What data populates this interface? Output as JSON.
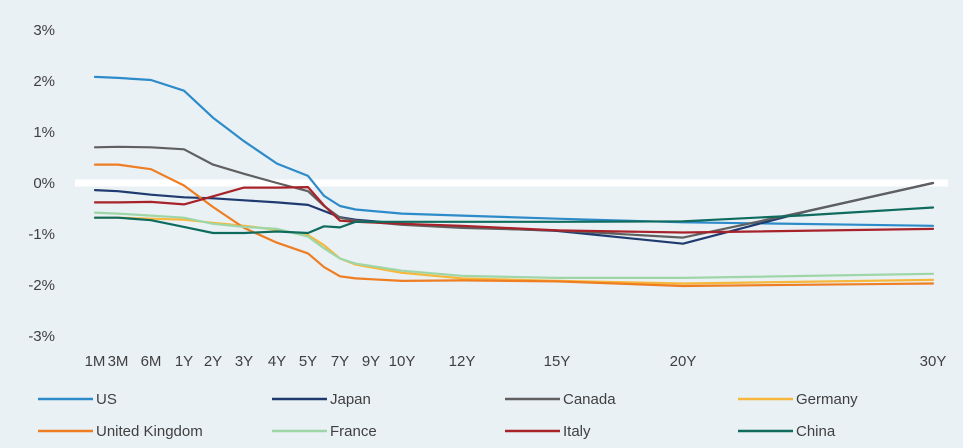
{
  "chart_data": {
    "type": "line",
    "title": "",
    "xlabel": "",
    "ylabel": "",
    "ylim": [
      -3,
      3
    ],
    "yticks": [
      3,
      2,
      1,
      0,
      -1,
      -2,
      -3
    ],
    "ytick_labels": [
      "3%",
      "2%",
      "1%",
      "0%",
      "-1%",
      "-2%",
      "-3%"
    ],
    "x_categories": [
      "1M",
      "3M",
      "6M",
      "1Y",
      "2Y",
      "3Y",
      "4Y",
      "5Y",
      "7Y",
      "9Y",
      "10Y",
      "12Y",
      "15Y",
      "20Y",
      "30Y"
    ],
    "x_positions_years": [
      0.083,
      0.25,
      0.5,
      1,
      2,
      3,
      4,
      5,
      7,
      9,
      10,
      12,
      15,
      20,
      30
    ],
    "zero_line": true,
    "grid": false,
    "legend_position": "bottom",
    "series": [
      {
        "name": "US",
        "color": "#2e8bc9",
        "points": [
          [
            0.083,
            2.08
          ],
          [
            0.25,
            2.06
          ],
          [
            0.5,
            2.02
          ],
          [
            1,
            1.81
          ],
          [
            2,
            1.28
          ],
          [
            3,
            0.82
          ],
          [
            4,
            0.38
          ],
          [
            5,
            0.14
          ],
          [
            6,
            -0.25
          ],
          [
            7,
            -0.45
          ],
          [
            8,
            -0.52
          ],
          [
            10,
            -0.6
          ],
          [
            12,
            -0.64
          ],
          [
            15,
            -0.7
          ],
          [
            20,
            -0.77
          ],
          [
            30,
            -0.84
          ]
        ]
      },
      {
        "name": "Japan",
        "color": "#1f3a6e",
        "points": [
          [
            0.083,
            -0.14
          ],
          [
            0.25,
            -0.16
          ],
          [
            0.5,
            -0.23
          ],
          [
            1,
            -0.28
          ],
          [
            2,
            -0.3
          ],
          [
            3,
            -0.34
          ],
          [
            4,
            -0.38
          ],
          [
            5,
            -0.43
          ],
          [
            6,
            -0.55
          ],
          [
            7,
            -0.67
          ],
          [
            8,
            -0.72
          ],
          [
            10,
            -0.8
          ],
          [
            12,
            -0.86
          ],
          [
            15,
            -0.94
          ],
          [
            20,
            -1.19
          ],
          [
            25,
            -0.55
          ],
          [
            30,
            0.0
          ]
        ]
      },
      {
        "name": "Canada",
        "color": "#606060",
        "points": [
          [
            0.083,
            0.7
          ],
          [
            0.25,
            0.71
          ],
          [
            0.5,
            0.7
          ],
          [
            1,
            0.66
          ],
          [
            2,
            0.36
          ],
          [
            3,
            0.18
          ],
          [
            4,
            0.0
          ],
          [
            5,
            -0.16
          ],
          [
            6,
            -0.45
          ],
          [
            7,
            -0.68
          ],
          [
            8,
            -0.74
          ],
          [
            10,
            -0.82
          ],
          [
            12,
            -0.88
          ],
          [
            15,
            -0.93
          ],
          [
            20,
            -1.07
          ],
          [
            25,
            -0.55
          ],
          [
            30,
            0.0
          ]
        ]
      },
      {
        "name": "Germany",
        "color": "#f6b83c",
        "points": [
          [
            0.083,
            -0.68
          ],
          [
            0.25,
            -0.68
          ],
          [
            0.5,
            -0.7
          ],
          [
            1,
            -0.72
          ],
          [
            2,
            -0.78
          ],
          [
            3,
            -0.84
          ],
          [
            4,
            -0.92
          ],
          [
            5,
            -1.02
          ],
          [
            6,
            -1.22
          ],
          [
            7,
            -1.48
          ],
          [
            8,
            -1.6
          ],
          [
            10,
            -1.76
          ],
          [
            12,
            -1.87
          ],
          [
            15,
            -1.92
          ],
          [
            20,
            -1.97
          ],
          [
            30,
            -1.9
          ]
        ]
      },
      {
        "name": "United Kingdom",
        "color": "#ef7d22",
        "points": [
          [
            0.083,
            0.36
          ],
          [
            0.25,
            0.36
          ],
          [
            0.5,
            0.27
          ],
          [
            1,
            -0.05
          ],
          [
            2,
            -0.47
          ],
          [
            3,
            -0.88
          ],
          [
            4,
            -1.17
          ],
          [
            5,
            -1.38
          ],
          [
            6,
            -1.65
          ],
          [
            7,
            -1.83
          ],
          [
            8,
            -1.87
          ],
          [
            10,
            -1.92
          ],
          [
            12,
            -1.91
          ],
          [
            15,
            -1.93
          ],
          [
            20,
            -2.02
          ],
          [
            30,
            -1.97
          ]
        ]
      },
      {
        "name": "France",
        "color": "#9fd6a8",
        "points": [
          [
            0.083,
            -0.58
          ],
          [
            0.25,
            -0.6
          ],
          [
            0.5,
            -0.64
          ],
          [
            1,
            -0.68
          ],
          [
            2,
            -0.8
          ],
          [
            3,
            -0.86
          ],
          [
            4,
            -0.9
          ],
          [
            5,
            -1.05
          ],
          [
            6,
            -1.28
          ],
          [
            7,
            -1.48
          ],
          [
            8,
            -1.58
          ],
          [
            10,
            -1.72
          ],
          [
            12,
            -1.82
          ],
          [
            15,
            -1.86
          ],
          [
            20,
            -1.86
          ],
          [
            30,
            -1.78
          ]
        ]
      },
      {
        "name": "Italy",
        "color": "#a8222a",
        "points": [
          [
            0.083,
            -0.38
          ],
          [
            0.25,
            -0.38
          ],
          [
            0.5,
            -0.37
          ],
          [
            1,
            -0.42
          ],
          [
            2,
            -0.26
          ],
          [
            3,
            -0.09
          ],
          [
            4,
            -0.09
          ],
          [
            5,
            -0.08
          ],
          [
            6,
            -0.44
          ],
          [
            7,
            -0.74
          ],
          [
            8,
            -0.76
          ],
          [
            10,
            -0.8
          ],
          [
            12,
            -0.84
          ],
          [
            15,
            -0.93
          ],
          [
            20,
            -0.97
          ],
          [
            30,
            -0.9
          ]
        ]
      },
      {
        "name": "China",
        "color": "#0e6b5e",
        "points": [
          [
            0.083,
            -0.68
          ],
          [
            0.25,
            -0.68
          ],
          [
            0.5,
            -0.73
          ],
          [
            1,
            -0.86
          ],
          [
            2,
            -0.98
          ],
          [
            3,
            -0.98
          ],
          [
            4,
            -0.95
          ],
          [
            5,
            -0.98
          ],
          [
            6,
            -0.85
          ],
          [
            7,
            -0.87
          ],
          [
            8,
            -0.76
          ],
          [
            10,
            -0.76
          ],
          [
            12,
            -0.76
          ],
          [
            15,
            -0.76
          ],
          [
            20,
            -0.75
          ],
          [
            25,
            -0.63
          ],
          [
            30,
            -0.48
          ]
        ]
      }
    ]
  }
}
